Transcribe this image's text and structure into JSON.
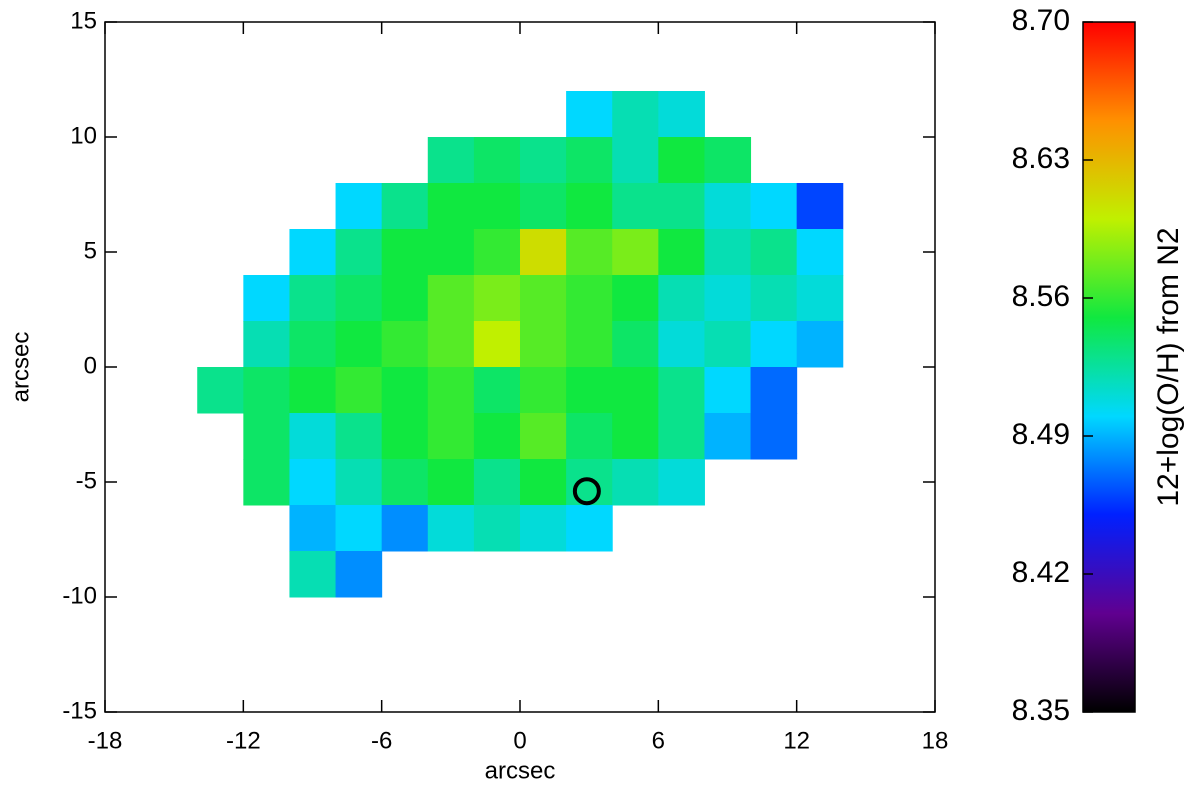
{
  "chart_data": {
    "type": "heatmap",
    "xlabel": "arcsec",
    "ylabel": "arcsec",
    "colorbar_label": "12+log(O/H) from N2",
    "xlim": [
      -18,
      18
    ],
    "ylim": [
      -15,
      15
    ],
    "xticks": [
      -18,
      -12,
      -6,
      0,
      6,
      12,
      18
    ],
    "yticks": [
      -15,
      -10,
      -5,
      0,
      5,
      10,
      15
    ],
    "zlim": [
      8.35,
      8.7
    ],
    "zticks": [
      8.35,
      8.42,
      8.49,
      8.56,
      8.63,
      {
        "value": 8.7,
        "label": "8.70"
      }
    ],
    "colormap": [
      "#000000",
      "#600090",
      "#0020ff",
      "#00d8ff",
      "#10e840",
      "#c0f000",
      "#ff9000",
      "#ff0000"
    ],
    "x": [
      -13,
      -11,
      -9,
      -7,
      -5,
      -3,
      -1,
      1,
      3,
      5,
      7,
      9,
      11,
      13
    ],
    "y": [
      11,
      9,
      7,
      5,
      3,
      1,
      -1,
      -3,
      -5,
      -7,
      -9
    ],
    "z": [
      [
        null,
        null,
        null,
        null,
        null,
        null,
        null,
        null,
        8.5,
        8.52,
        8.51,
        null,
        null,
        null
      ],
      [
        null,
        null,
        null,
        null,
        null,
        8.53,
        8.54,
        8.53,
        8.54,
        8.52,
        8.55,
        8.54,
        null,
        null
      ],
      [
        null,
        null,
        null,
        8.5,
        8.53,
        8.55,
        8.55,
        8.54,
        8.55,
        8.53,
        8.53,
        8.51,
        8.5,
        8.46
      ],
      [
        null,
        null,
        8.5,
        8.53,
        8.55,
        8.55,
        8.56,
        8.61,
        8.57,
        8.58,
        8.55,
        8.52,
        8.53,
        8.5
      ],
      [
        null,
        8.5,
        8.53,
        8.54,
        8.55,
        8.57,
        8.58,
        8.57,
        8.56,
        8.55,
        8.52,
        8.51,
        8.52,
        8.51
      ],
      [
        null,
        8.52,
        8.54,
        8.55,
        8.56,
        8.57,
        8.6,
        8.57,
        8.56,
        8.54,
        8.51,
        8.52,
        8.5,
        8.49
      ],
      [
        8.53,
        8.54,
        8.55,
        8.56,
        8.55,
        8.56,
        8.54,
        8.56,
        8.55,
        8.55,
        8.53,
        8.5,
        8.47,
        null
      ],
      [
        null,
        8.54,
        8.51,
        8.53,
        8.55,
        8.56,
        8.55,
        8.57,
        8.54,
        8.55,
        8.53,
        8.49,
        8.47,
        null
      ],
      [
        null,
        8.54,
        8.5,
        8.52,
        8.54,
        8.55,
        8.53,
        8.55,
        8.53,
        8.52,
        8.51,
        null,
        null,
        null
      ],
      [
        null,
        null,
        8.49,
        8.5,
        8.48,
        8.51,
        8.52,
        8.51,
        8.5,
        null,
        null,
        null,
        null,
        null
      ],
      [
        null,
        null,
        8.52,
        8.48,
        null,
        null,
        null,
        null,
        null,
        null,
        null,
        null,
        null,
        null
      ]
    ],
    "markers": [
      {
        "x": 2.9,
        "y": -5.4
      }
    ]
  }
}
